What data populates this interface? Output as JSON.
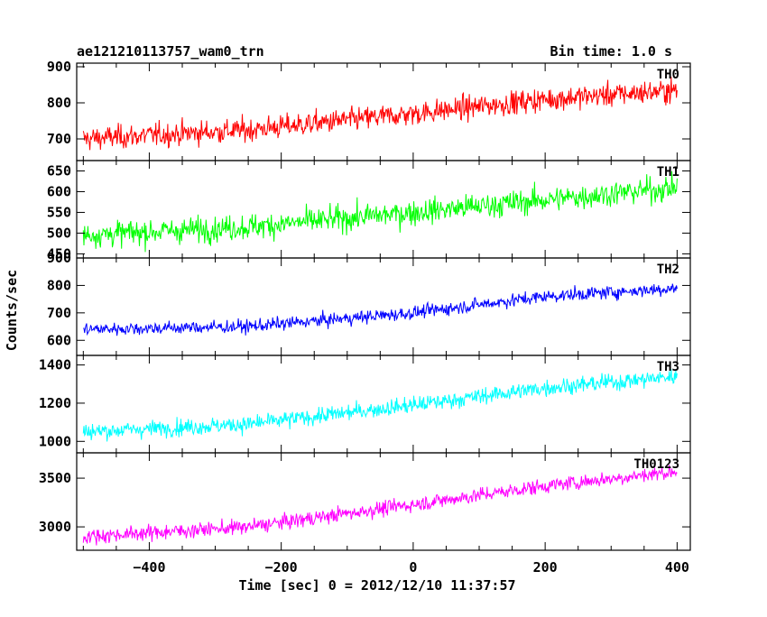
{
  "header": {
    "obs_id": "ae121210113757_wam0_trn",
    "bin_time": "Bin time: 1.0 s"
  },
  "chart_data": {
    "type": "line",
    "xlabel": "Time [sec] 0 = 2012/12/10 11:37:57",
    "ylabel": "Counts/sec",
    "xlim": [
      -510,
      420
    ],
    "xticks": [
      -400,
      -200,
      0,
      200,
      400
    ],
    "x_tick_labels": [
      "−400",
      "−200",
      "0",
      "200",
      "400"
    ],
    "bin_time_s": 1.0,
    "panels": [
      {
        "name": "TH0",
        "color": "#ff0000",
        "ylim": [
          640,
          910
        ],
        "yticks": [
          700,
          800,
          900
        ],
        "trend": {
          "x": [
            -500,
            -250,
            0,
            200,
            400
          ],
          "y": [
            700,
            725,
            770,
            810,
            835
          ]
        },
        "noise_amplitude": 30
      },
      {
        "name": "TH1",
        "color": "#00ff00",
        "ylim": [
          440,
          675
        ],
        "yticks": [
          450,
          500,
          550,
          600,
          650
        ],
        "trend": {
          "x": [
            -500,
            -250,
            0,
            200,
            400
          ],
          "y": [
            495,
            515,
            550,
            580,
            610
          ]
        },
        "noise_amplitude": 28
      },
      {
        "name": "TH2",
        "color": "#0000ff",
        "ylim": [
          545,
          900
        ],
        "yticks": [
          600,
          700,
          800,
          900
        ],
        "trend": {
          "x": [
            -500,
            -250,
            0,
            200,
            400
          ],
          "y": [
            640,
            650,
            700,
            760,
            790
          ]
        },
        "noise_amplitude": 22
      },
      {
        "name": "TH3",
        "color": "#00ffff",
        "ylim": [
          940,
          1450
        ],
        "yticks": [
          1000,
          1200,
          1400
        ],
        "trend": {
          "x": [
            -500,
            -250,
            0,
            200,
            400
          ],
          "y": [
            1050,
            1090,
            1190,
            1280,
            1340
          ]
        },
        "noise_amplitude": 40
      },
      {
        "name": "TH0123",
        "color": "#ff00ff",
        "ylim": [
          2760,
          3760
        ],
        "yticks": [
          3000,
          3500
        ],
        "trend": {
          "x": [
            -500,
            -250,
            0,
            200,
            400
          ],
          "y": [
            2900,
            3000,
            3230,
            3420,
            3570
          ]
        },
        "noise_amplitude": 70
      }
    ]
  }
}
